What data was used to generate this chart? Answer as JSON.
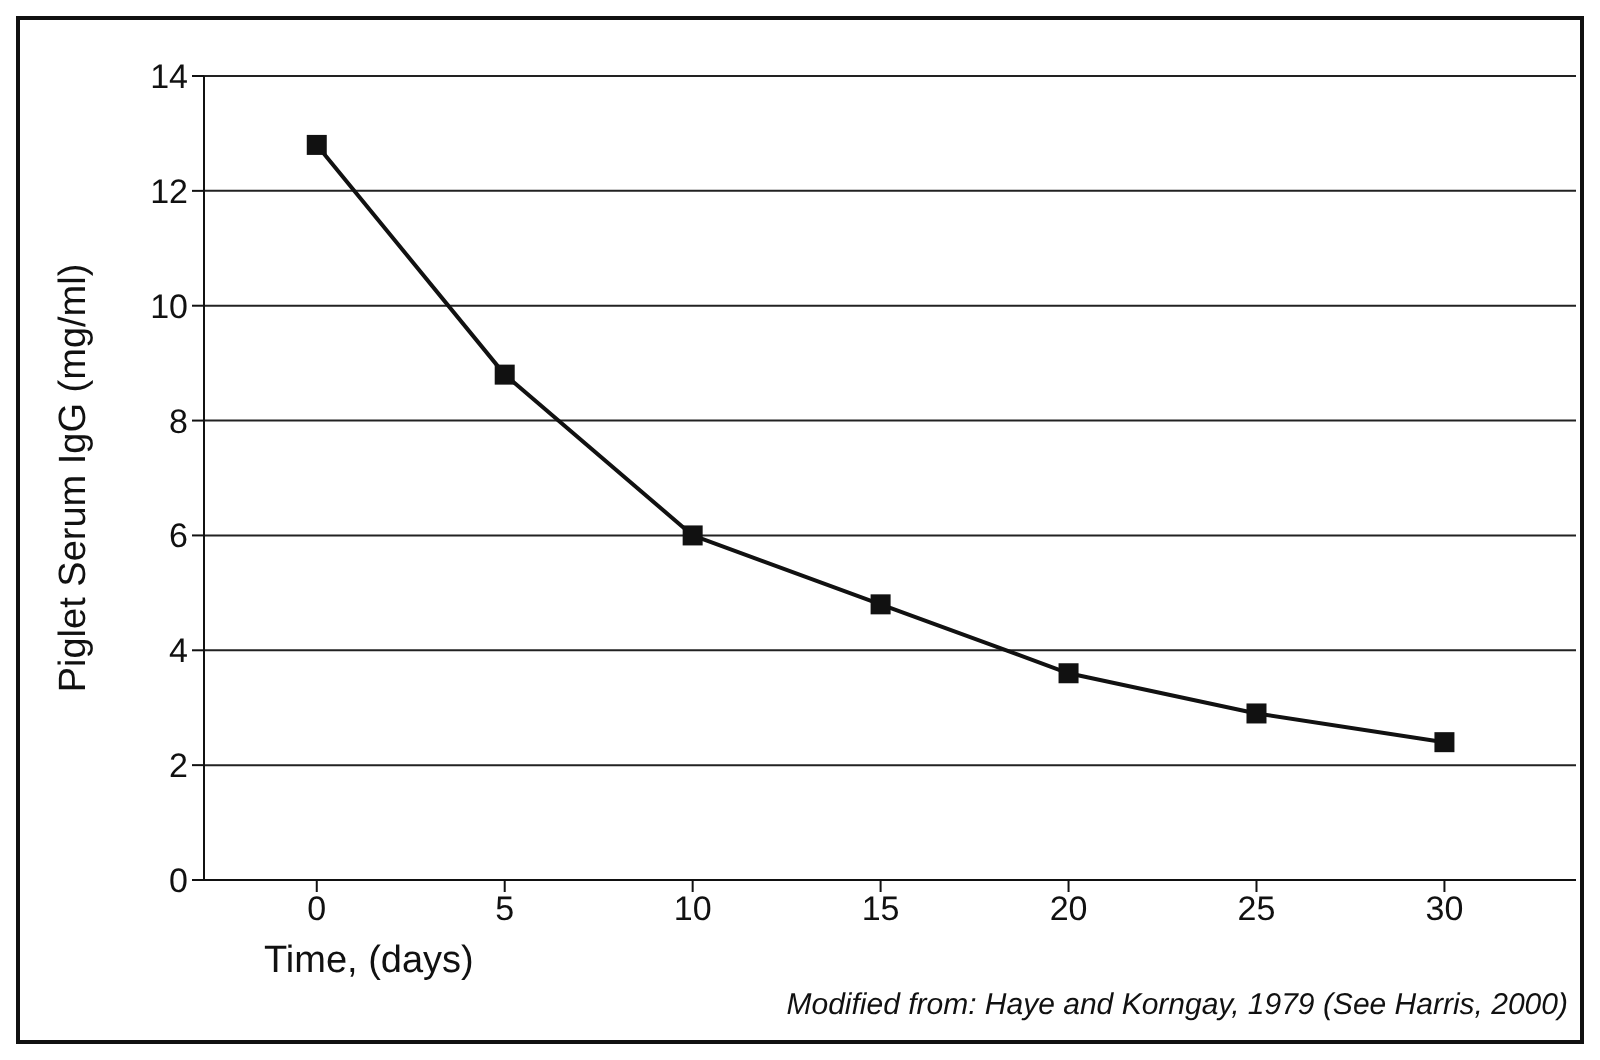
{
  "chart_data": {
    "type": "line",
    "xlabel": "Time, (days)",
    "ylabel": "Piglet Serum IgG (mg/ml)",
    "x": [
      0,
      5,
      10,
      15,
      20,
      25,
      30
    ],
    "series": [
      {
        "color": "#111111",
        "values": [
          12.8,
          8.8,
          6.0,
          4.8,
          3.6,
          2.9,
          2.4
        ]
      }
    ],
    "xlim": [
      -3,
      33.5
    ],
    "xticks": [
      0,
      5,
      10,
      15,
      20,
      25,
      30
    ],
    "ylim": [
      0,
      14
    ],
    "yticks": [
      0,
      2,
      4,
      6,
      8,
      10,
      12,
      14
    ],
    "grid": "y",
    "marker": "square",
    "line_style": "solid",
    "annotations": [
      "Modified from: Haye and Korngay, 1979 (See Harris, 2000)"
    ]
  }
}
